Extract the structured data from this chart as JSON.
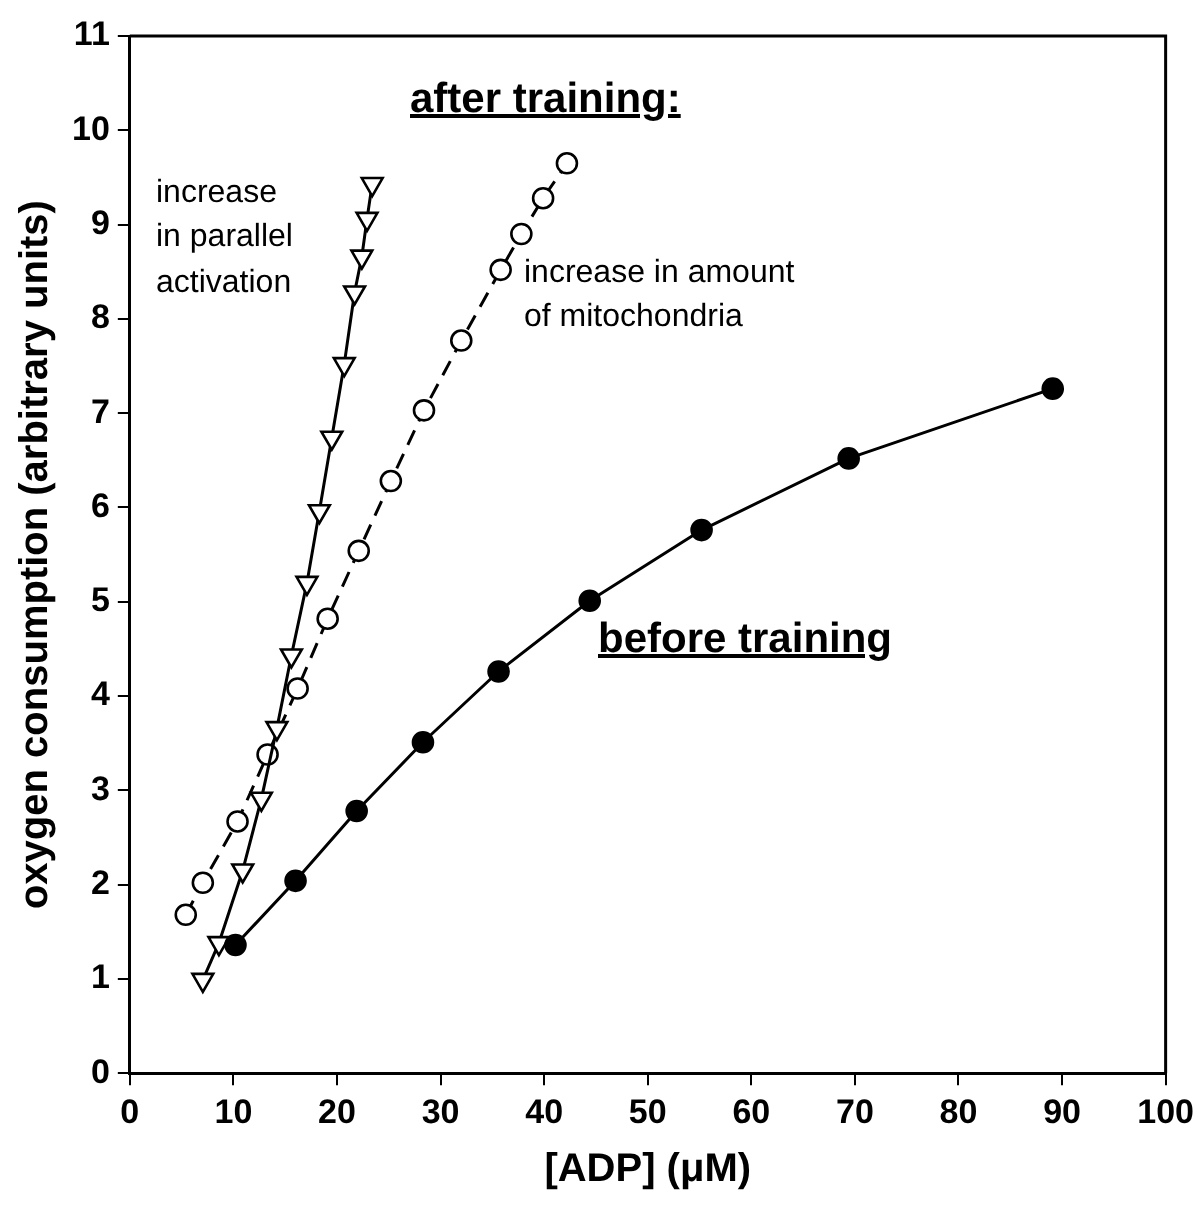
{
  "chart_data": {
    "type": "line",
    "xlabel": "[ADP] (μM)",
    "ylabel": "oxygen consumption (arbitrary units)",
    "xlim": [
      0,
      100
    ],
    "xticks": [
      0,
      10,
      20,
      30,
      40,
      50,
      60,
      70,
      80,
      90,
      100
    ],
    "ylim": [
      0,
      11
    ],
    "yticks": [
      0,
      1,
      2,
      3,
      4,
      5,
      6,
      7,
      8,
      9,
      10,
      11
    ],
    "grid": false,
    "legend": false,
    "series": [
      {
        "color": "#000000",
        "marker": "circle",
        "line_style": "solid",
        "x": [
          10.2,
          16.0,
          21.9,
          28.3,
          35.6,
          44.4,
          55.2,
          69.4,
          89.1
        ],
        "values": [
          1.36,
          2.04,
          2.78,
          3.51,
          4.26,
          5.01,
          5.76,
          6.52,
          7.26
        ]
      },
      {
        "color": "#000000",
        "marker": "triangle",
        "line_style": "solid",
        "x": [
          7.05,
          8.6,
          10.9,
          12.7,
          14.2,
          15.6,
          17.1,
          18.3,
          19.5,
          20.7,
          21.7,
          22.4,
          22.9,
          23.4
        ],
        "values": [
          0.99,
          1.38,
          2.15,
          2.91,
          3.66,
          4.43,
          5.2,
          5.96,
          6.74,
          7.52,
          8.28,
          8.66,
          9.06,
          9.43
        ]
      },
      {
        "color": "#000000",
        "marker": "circle",
        "line_style": "dashed",
        "x": [
          5.4,
          7.05,
          10.4,
          13.3,
          16.2,
          19.1,
          22.1,
          25.2,
          28.4,
          32.0,
          35.8,
          37.8,
          39.9,
          42.2
        ],
        "values": [
          1.68,
          2.02,
          2.67,
          3.38,
          4.08,
          4.82,
          5.54,
          6.28,
          7.03,
          7.77,
          8.52,
          8.9,
          9.28,
          9.65
        ]
      }
    ],
    "annotations": [
      "after training:",
      "increase\nin parallel\nactivation",
      "increase in amount\nof mitochondria",
      "before training"
    ]
  }
}
